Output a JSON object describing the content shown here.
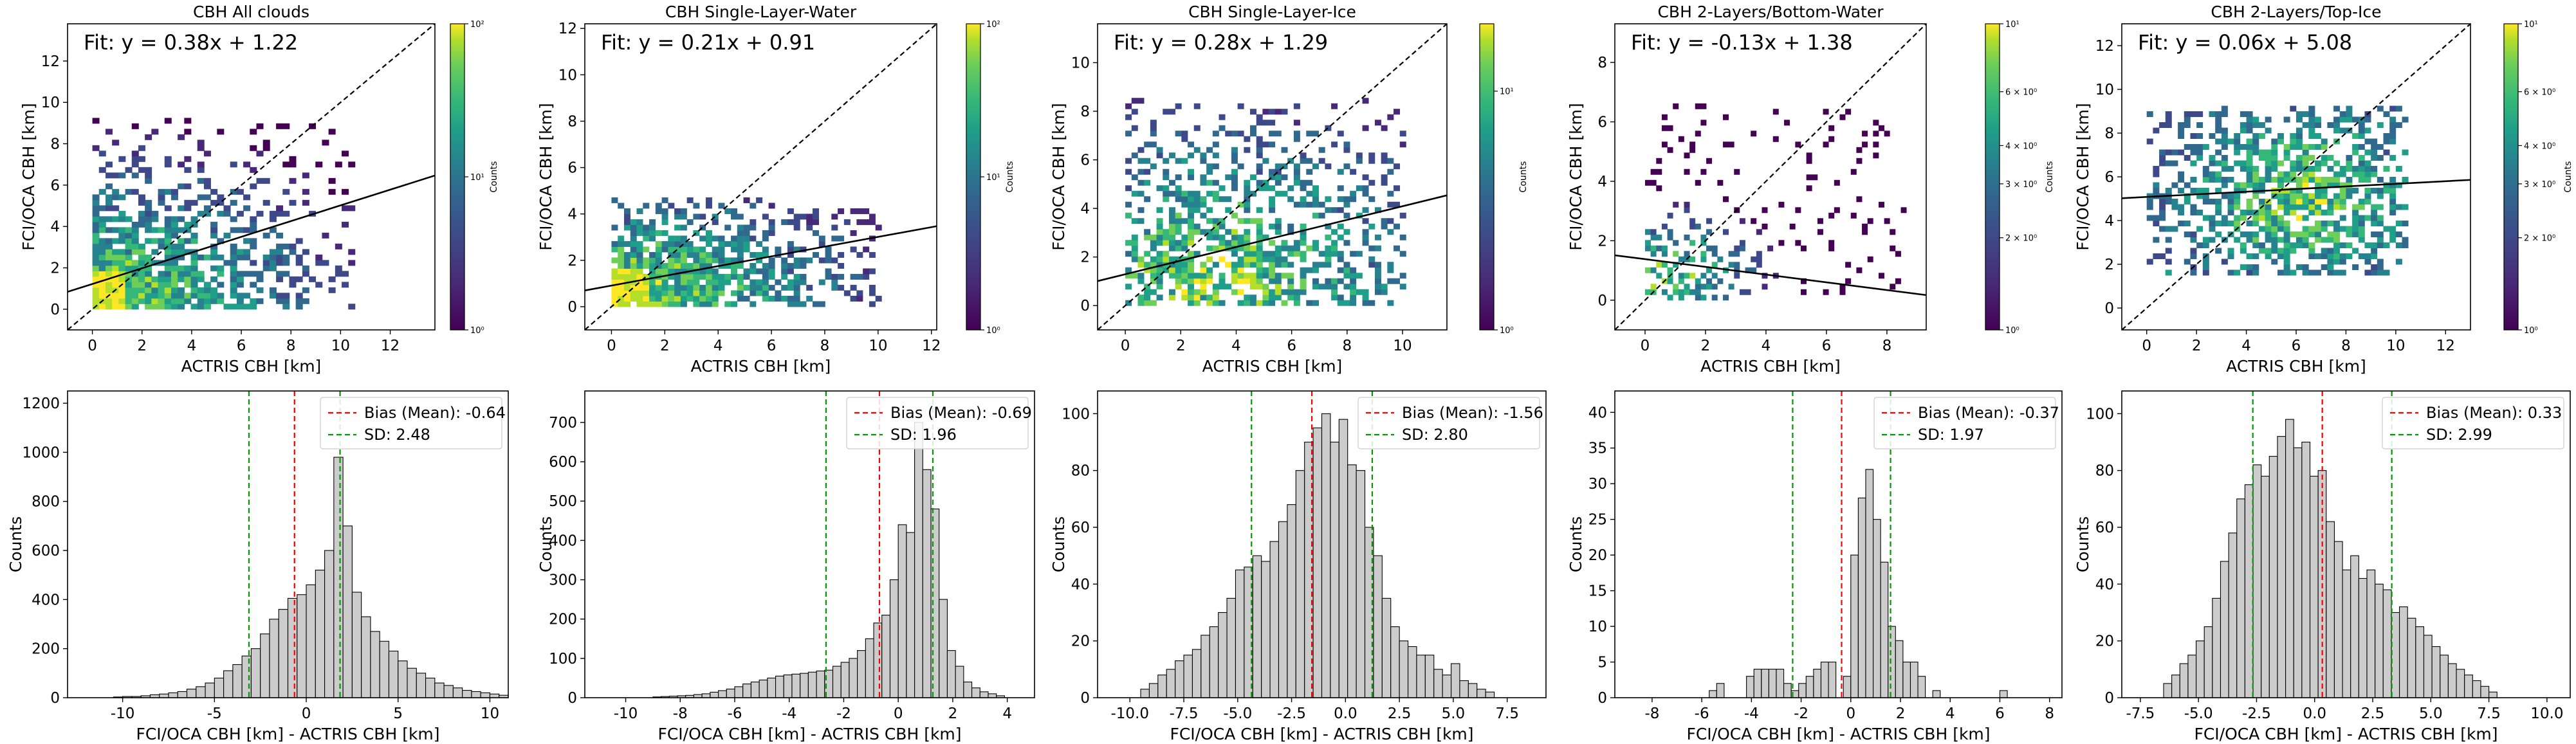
{
  "figure": {
    "colorbar_label": "Counts",
    "scatter_xlabel": "ACTRIS CBH [km]",
    "scatter_ylabel": "FCI/OCA CBH [km]",
    "hist_xlabel": "FCI/OCA CBH [km] - ACTRIS CBH [km]",
    "hist_ylabel": "Counts"
  },
  "colors": {
    "bias_line": "#ff0000",
    "sd_line": "#009900",
    "hist_fill": "#cccccc",
    "fit_line": "#000000",
    "one_to_one": "#000000"
  },
  "chart_data": [
    {
      "type": "heatmap",
      "title": "CBH All clouds",
      "fit_text": "Fit: y = 0.38x + 1.22",
      "fit": {
        "slope": 0.38,
        "intercept": 1.22
      },
      "xlim": [
        -1,
        13.8
      ],
      "ylim": [
        -1,
        13.8
      ],
      "xticks": [
        "0",
        "2",
        "4",
        "6",
        "8",
        "10",
        "12"
      ],
      "yticks": [
        "0",
        "2",
        "4",
        "6",
        "8",
        "10",
        "12"
      ],
      "colorbar": {
        "scale": "log",
        "ticks": [
          "10⁰",
          "10¹",
          "10²"
        ]
      }
    },
    {
      "type": "heatmap",
      "title": "CBH Single-Layer-Water",
      "fit_text": "Fit: y = 0.21x + 0.91",
      "fit": {
        "slope": 0.21,
        "intercept": 0.91
      },
      "xlim": [
        -1,
        12.2
      ],
      "ylim": [
        -1,
        12.2
      ],
      "xticks": [
        "0",
        "2",
        "4",
        "6",
        "8",
        "10",
        "12"
      ],
      "yticks": [
        "0",
        "2",
        "4",
        "6",
        "8",
        "10",
        "12"
      ],
      "colorbar": {
        "scale": "log",
        "ticks": [
          "10⁰",
          "10¹",
          "10²"
        ]
      }
    },
    {
      "type": "heatmap",
      "title": "CBH Single-Layer-Ice",
      "fit_text": "Fit: y = 0.28x + 1.29",
      "fit": {
        "slope": 0.28,
        "intercept": 1.29
      },
      "xlim": [
        -1,
        11.6
      ],
      "ylim": [
        -1,
        11.6
      ],
      "xticks": [
        "0",
        "2",
        "4",
        "6",
        "8",
        "10"
      ],
      "yticks": [
        "0",
        "2",
        "4",
        "6",
        "8",
        "10"
      ],
      "colorbar": {
        "scale": "log",
        "ticks": [
          "10⁰",
          "10¹"
        ]
      }
    },
    {
      "type": "heatmap",
      "title": "CBH 2-Layers/Bottom-Water",
      "fit_text": "Fit: y = -0.13x + 1.38",
      "fit": {
        "slope": -0.13,
        "intercept": 1.38
      },
      "xlim": [
        -1,
        9.3
      ],
      "ylim": [
        -1,
        9.3
      ],
      "xticks": [
        "0",
        "2",
        "4",
        "6",
        "8"
      ],
      "yticks": [
        "0",
        "2",
        "4",
        "6",
        "8"
      ],
      "colorbar": {
        "scale": "log",
        "ticks": [
          "10⁰",
          "2 × 10⁰",
          "3 × 10⁰",
          "4 × 10⁰",
          "6 × 10⁰",
          "10¹"
        ]
      }
    },
    {
      "type": "heatmap",
      "title": "CBH 2-Layers/Top-Ice",
      "fit_text": "Fit: y = 0.06x + 5.08",
      "fit": {
        "slope": 0.06,
        "intercept": 5.08
      },
      "xlim": [
        -1,
        13
      ],
      "ylim": [
        -1,
        13
      ],
      "xticks": [
        "0",
        "2",
        "4",
        "6",
        "8",
        "10",
        "12"
      ],
      "yticks": [
        "0",
        "2",
        "4",
        "6",
        "8",
        "10",
        "12"
      ],
      "colorbar": {
        "scale": "log",
        "ticks": [
          "10⁰",
          "2 × 10⁰",
          "3 × 10⁰",
          "4 × 10⁰",
          "6 × 10⁰",
          "10¹"
        ]
      }
    },
    {
      "type": "bar",
      "bias": -0.64,
      "sd": 2.48,
      "bias_label": "Bias (Mean): -0.64",
      "sd_label": "SD: 2.48",
      "xlim": [
        -13,
        11
      ],
      "ylim": [
        0,
        1250
      ],
      "xticks": [
        -10,
        -5,
        0,
        5,
        10
      ],
      "yticks": [
        0,
        200,
        400,
        600,
        800,
        1000,
        1200
      ],
      "bin_start": -10.5,
      "bin_width": 0.5,
      "values": [
        3,
        5,
        5,
        8,
        12,
        15,
        20,
        25,
        35,
        45,
        60,
        80,
        110,
        135,
        170,
        200,
        260,
        320,
        360,
        405,
        420,
        460,
        520,
        600,
        980,
        700,
        430,
        330,
        270,
        230,
        190,
        150,
        120,
        100,
        80,
        60,
        50,
        40,
        30,
        25,
        20,
        15,
        10
      ]
    },
    {
      "type": "bar",
      "bias": -0.69,
      "sd": 1.96,
      "bias_label": "Bias (Mean): -0.69",
      "sd_label": "SD: 1.96",
      "xlim": [
        -11.5,
        5
      ],
      "ylim": [
        0,
        780
      ],
      "xticks": [
        -10,
        -8,
        -6,
        -4,
        -2,
        0,
        2,
        4
      ],
      "yticks": [
        0,
        100,
        200,
        300,
        400,
        500,
        600,
        700
      ],
      "bin_start": -9.0,
      "bin_width": 0.3,
      "values": [
        2,
        3,
        4,
        5,
        6,
        8,
        10,
        14,
        18,
        22,
        28,
        35,
        40,
        45,
        50,
        55,
        58,
        60,
        62,
        65,
        68,
        70,
        80,
        90,
        100,
        120,
        150,
        190,
        210,
        300,
        440,
        420,
        700,
        580,
        480,
        250,
        120,
        80,
        40,
        25,
        15,
        10,
        5
      ]
    },
    {
      "type": "bar",
      "bias": -1.56,
      "sd": 2.8,
      "bias_label": "Bias (Mean): -1.56",
      "sd_label": "SD: 2.80",
      "xlim": [
        -11.5,
        9.3
      ],
      "ylim": [
        0,
        108
      ],
      "xticks": [
        "-10.0",
        "-7.5",
        "-5.0",
        "-2.5",
        "0.0",
        "2.5",
        "5.0",
        "7.5"
      ],
      "ytick_values": [
        0,
        20,
        40,
        60,
        80,
        100
      ],
      "bin_start": -9.5,
      "bin_width": 0.4,
      "values": [
        3,
        5,
        8,
        10,
        13,
        15,
        17,
        22,
        25,
        30,
        35,
        45,
        46,
        50,
        48,
        55,
        62,
        68,
        80,
        90,
        95,
        100,
        90,
        98,
        82,
        80,
        60,
        50,
        35,
        25,
        20,
        18,
        15,
        15,
        10,
        8,
        12,
        6,
        5,
        3,
        2
      ]
    },
    {
      "type": "bar",
      "bias": -0.37,
      "sd": 1.97,
      "bias_label": "Bias (Mean): -0.37",
      "sd_label": "SD: 1.97",
      "xlim": [
        -9.5,
        8.5
      ],
      "ylim": [
        0,
        43
      ],
      "xticks": [
        -8,
        -6,
        -4,
        -2,
        0,
        2,
        4,
        6,
        8
      ],
      "yticks": [
        0,
        5,
        10,
        15,
        20,
        25,
        30,
        35,
        40
      ],
      "bin_start": -6.0,
      "bin_width": 0.3,
      "values": [
        0,
        1,
        2,
        0,
        0,
        0,
        3,
        4,
        4,
        4,
        4,
        2,
        1,
        2,
        3,
        4,
        5,
        5,
        0,
        3,
        20,
        28,
        32,
        25,
        19,
        10,
        8,
        5,
        5,
        3,
        0,
        1,
        0,
        0,
        0,
        0,
        0,
        0,
        0,
        0,
        1
      ]
    },
    {
      "type": "bar",
      "bias": 0.33,
      "sd": 2.99,
      "bias_label": "Bias (Mean): 0.33",
      "sd_label": "SD: 2.99",
      "xlim": [
        -8.3,
        11
      ],
      "ylim": [
        0,
        108
      ],
      "xticks": [
        "-7.5",
        "-5.0",
        "-2.5",
        "0.0",
        "2.5",
        "5.0",
        "7.5",
        "10.0"
      ],
      "ytick_values": [
        0,
        20,
        40,
        60,
        80,
        100
      ],
      "bin_start": -6.5,
      "bin_width": 0.35,
      "values": [
        5,
        8,
        12,
        15,
        20,
        25,
        35,
        48,
        58,
        70,
        75,
        82,
        78,
        85,
        92,
        98,
        88,
        90,
        78,
        80,
        62,
        55,
        45,
        50,
        42,
        45,
        40,
        38,
        30,
        32,
        28,
        25,
        22,
        18,
        15,
        12,
        10,
        8,
        6,
        4,
        2
      ]
    }
  ]
}
